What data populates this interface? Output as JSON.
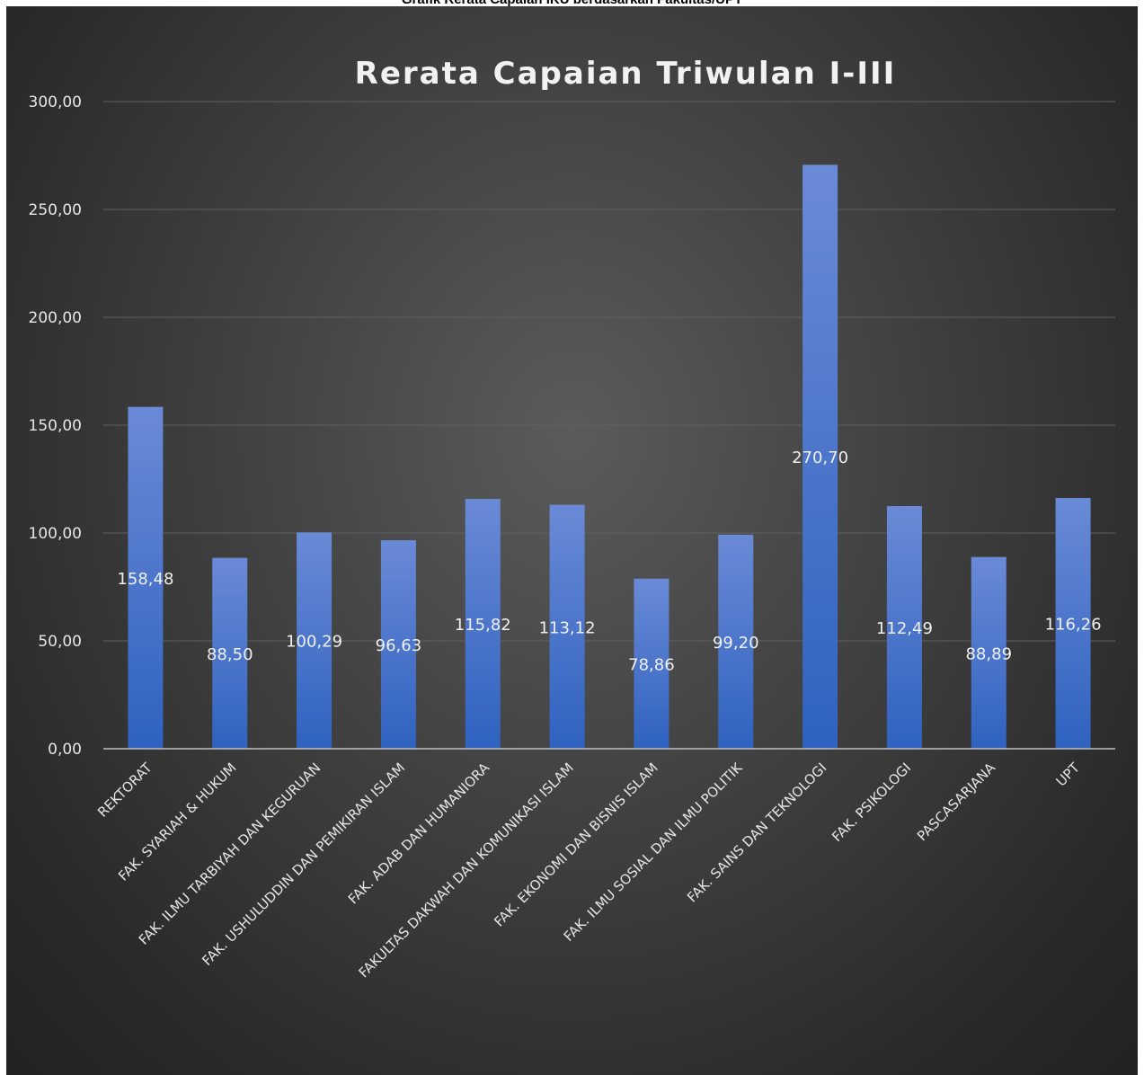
{
  "caption": "Grafik Rerata Capaian IKU berdasarkan Fakultas/UPT",
  "chart_data": {
    "type": "bar",
    "title": "Rerata Capaian Triwulan I-III",
    "xlabel": "",
    "ylabel": "",
    "ylim": [
      0,
      300
    ],
    "yticks": [
      "0,00",
      "50,00",
      "100,00",
      "150,00",
      "200,00",
      "250,00",
      "300,00"
    ],
    "grid": true,
    "legend": "none",
    "categories": [
      "REKTORAT",
      "FAK. SYARIAH & HUKUM",
      "FAK. ILMU TARBIYAH DAN KEGURUAN",
      "FAK. USHULUDDIN DAN PEMIKIRAN ISLAM",
      "FAK. ADAB DAN HUMANIORA",
      "FAKULTAS DAKWAH DAN KOMUNIKASI ISLAM",
      "FAK. EKONOMI DAN BISNIS ISLAM",
      "FAK. ILMU SOSIAL DAN ILMU POLITIK",
      "FAK. SAINS DAN TEKNOLOGI",
      "FAK. PSIKOLOGI",
      "PASCASARJANA",
      "UPT"
    ],
    "values": [
      158.48,
      88.5,
      100.29,
      96.63,
      115.82,
      113.12,
      78.86,
      99.2,
      270.7,
      112.49,
      88.89,
      116.26
    ],
    "value_labels": [
      "158,48",
      "88,50",
      "100,29",
      "96,63",
      "115,82",
      "113,12",
      "78,86",
      "99,20",
      "270,70",
      "112,49",
      "88,89",
      "116,26"
    ],
    "colors": {
      "bar_top": "#6a8ad6",
      "bar_bottom": "#2f62c0"
    }
  }
}
